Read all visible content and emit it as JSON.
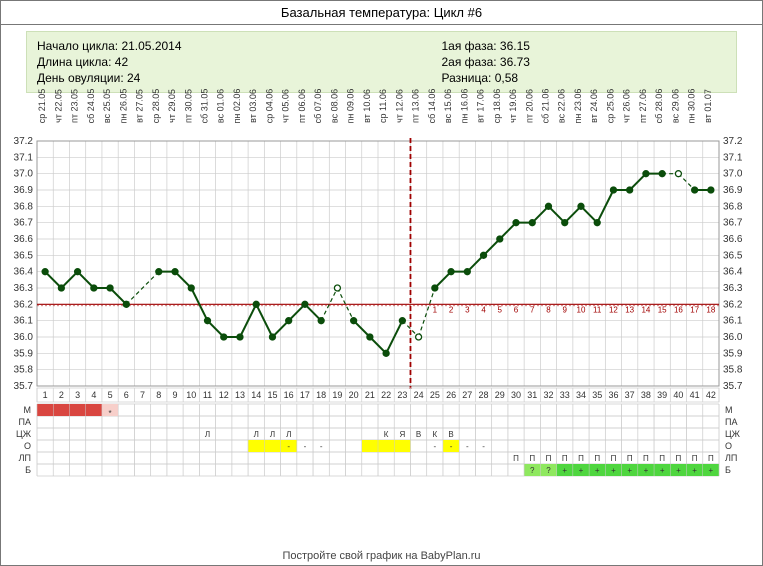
{
  "title": "Базальная температура: Цикл #6",
  "info_left": [
    "Начало цикла: 21.05.2014",
    "Длина цикла: 42",
    "День овуляции: 24"
  ],
  "info_right": [
    "1ая фаза: 36.15",
    "2ая фаза: 36.73",
    "Разница: 0,58"
  ],
  "footer": "Постройте свой график на BabyPlan.ru",
  "chart": {
    "n_days": 42,
    "ymin": 35.7,
    "ymax": 37.2,
    "ystep": 0.1,
    "cover_line_y": 36.2,
    "ov_day": 24,
    "phase2_days": [
      1,
      2,
      3,
      4,
      5,
      6,
      7,
      8,
      9,
      10,
      11,
      12,
      13,
      14,
      15,
      16,
      17,
      18
    ],
    "weekdays": [
      "ср",
      "чт",
      "пт",
      "сб",
      "вс",
      "пн",
      "вт",
      "ср",
      "чт",
      "пт",
      "сб",
      "вс",
      "пн",
      "вт",
      "ср",
      "чт",
      "пт",
      "сб",
      "вс",
      "пн",
      "вт",
      "ср",
      "чт",
      "пт",
      "сб",
      "вс",
      "пн",
      "вт",
      "ср",
      "чт",
      "пт",
      "сб",
      "вс",
      "пн",
      "вт",
      "ср",
      "чт",
      "пт",
      "сб",
      "вс",
      "пн",
      "вт"
    ],
    "dates": [
      "21.05",
      "22.05",
      "23.05",
      "24.05",
      "25.05",
      "26.05",
      "27.05",
      "28.05",
      "29.05",
      "30.05",
      "31.05",
      "01.06",
      "02.06",
      "03.06",
      "04.06",
      "05.06",
      "06.06",
      "07.06",
      "08.06",
      "09.06",
      "10.06",
      "11.06",
      "12.06",
      "13.06",
      "14.06",
      "15.06",
      "16.06",
      "17.06",
      "18.06",
      "19.06",
      "20.06",
      "21.06",
      "22.06",
      "23.06",
      "24.06",
      "25.06",
      "26.06",
      "27.06",
      "28.06",
      "29.06",
      "30.06",
      "01.07"
    ],
    "temps": [
      36.4,
      36.3,
      36.4,
      36.3,
      36.3,
      36.2,
      null,
      36.4,
      36.4,
      36.3,
      36.1,
      36.0,
      36.0,
      36.2,
      36.0,
      36.1,
      36.2,
      36.1,
      36.3,
      36.1,
      36.0,
      35.9,
      36.1,
      36.0,
      36.3,
      36.4,
      36.4,
      36.5,
      36.6,
      36.7,
      36.7,
      36.8,
      36.7,
      36.8,
      36.7,
      36.9,
      36.9,
      37.0,
      37.0,
      37.0,
      36.9,
      36.9
    ],
    "hollow_days": [
      19,
      24,
      40
    ],
    "colors": {
      "grid": "#cccccc",
      "line": "#0b4d0b",
      "ov": "#a00000",
      "mens": "#d94640",
      "mens_star_bg": "#f7cfca",
      "yellow": "#ffff00",
      "yellow_lt": "#ffff99",
      "green_plus": "#4fd63f",
      "green_q": "#8fe85f"
    }
  },
  "rows": {
    "labels": [
      "М",
      "ПА",
      "ЦЖ",
      "О",
      "ЛП",
      "Б"
    ],
    "M_fill_days": [
      1,
      2,
      3,
      4
    ],
    "M_star_day": 5,
    "PA_marks": {
      "11": "Л",
      "14": "Л",
      "15": "Л",
      "16": "Л",
      "22": "К",
      "23": "Я",
      "24": "В",
      "25": "К",
      "26": "В"
    },
    "CZH_yellow": [
      14,
      15,
      16,
      21,
      22,
      23,
      26
    ],
    "CZH_dash": [
      16,
      17,
      18,
      25,
      26,
      27,
      28
    ],
    "LP_marks_days": [
      30,
      31,
      32,
      33,
      34,
      35,
      36,
      37,
      38,
      39,
      40,
      41,
      42
    ],
    "B_q_days": [
      31,
      32
    ],
    "B_plus_days": [
      33,
      34,
      35,
      36,
      37,
      38,
      39,
      40,
      41,
      42
    ]
  }
}
